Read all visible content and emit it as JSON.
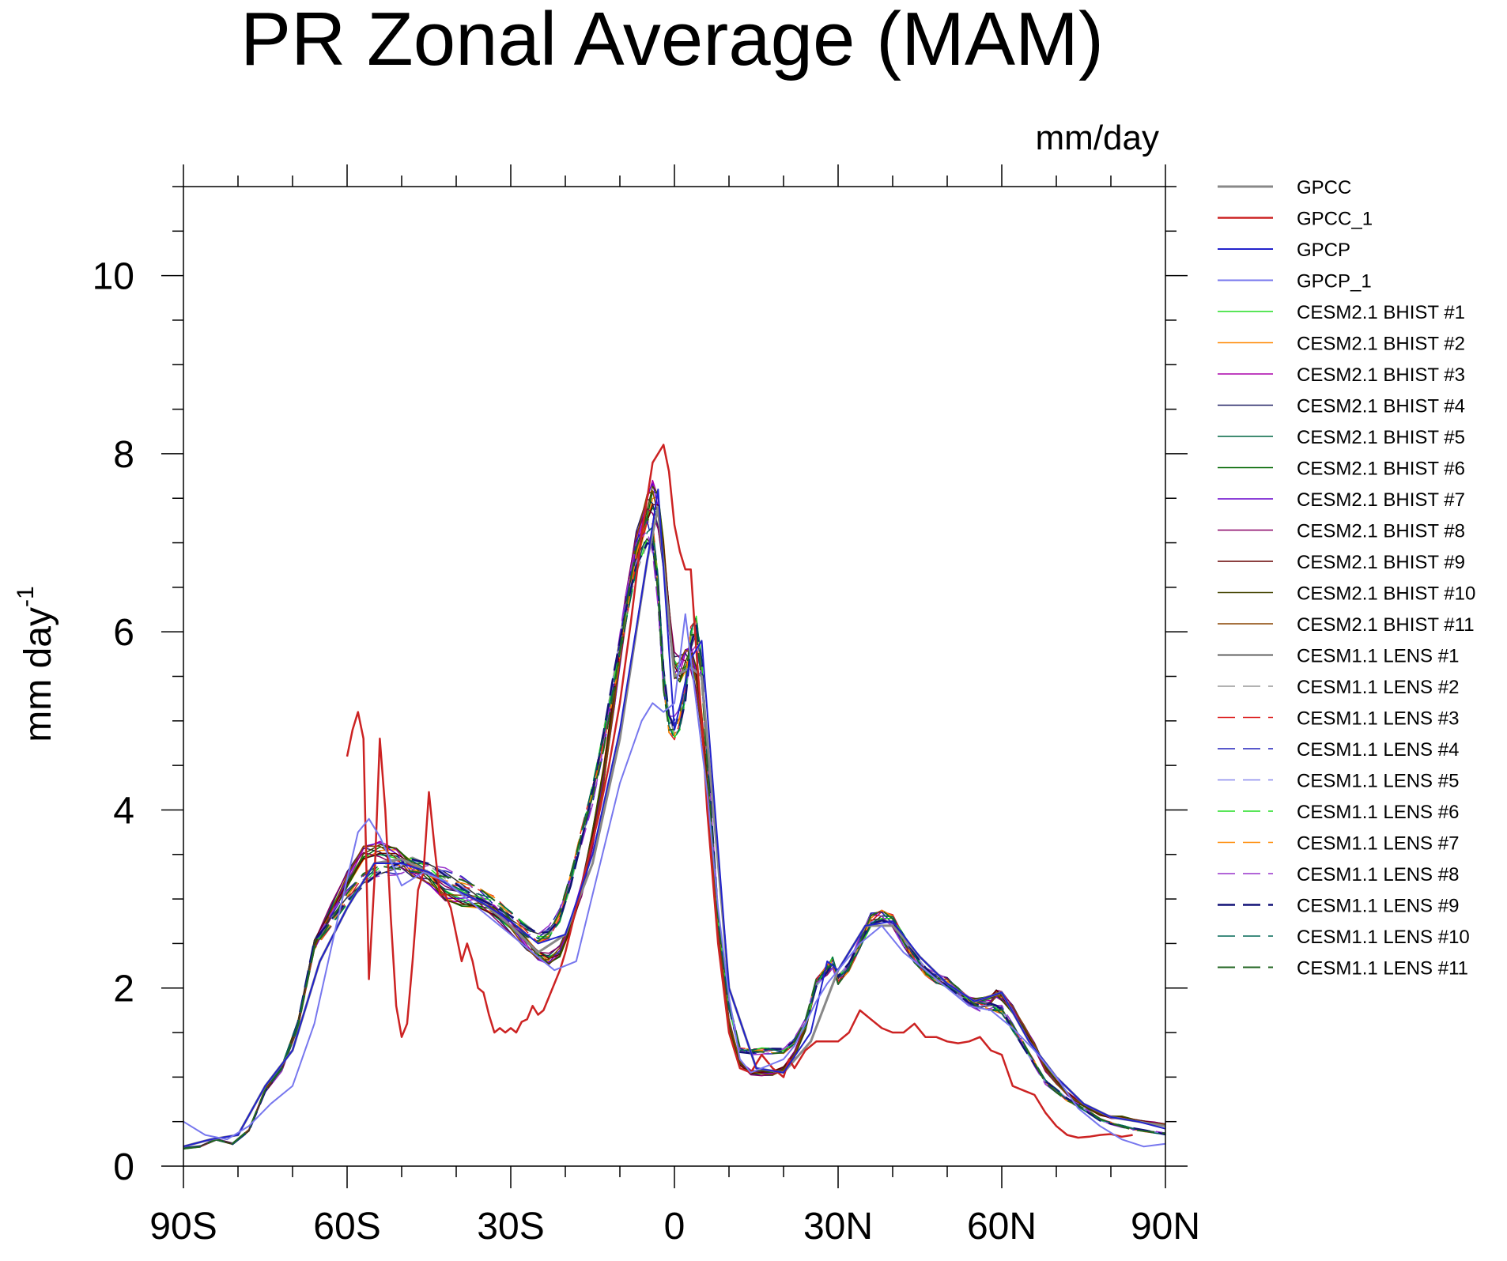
{
  "chart_data": {
    "type": "line",
    "title": "PR Zonal Average (MAM)",
    "units": "mm/day",
    "ylabel": "mm day",
    "ylabel_sup": "-1",
    "xlim": [
      -90,
      90
    ],
    "ylim": [
      0,
      11
    ],
    "x_ticks": [
      {
        "value": -90,
        "label": "90S"
      },
      {
        "value": -60,
        "label": "60S"
      },
      {
        "value": -30,
        "label": "30S"
      },
      {
        "value": 0,
        "label": "0"
      },
      {
        "value": 30,
        "label": "30N"
      },
      {
        "value": 60,
        "label": "60N"
      },
      {
        "value": 90,
        "label": "90N"
      }
    ],
    "y_ticks": [
      {
        "value": 0,
        "label": "0"
      },
      {
        "value": 2,
        "label": "2"
      },
      {
        "value": 4,
        "label": "4"
      },
      {
        "value": 6,
        "label": "6"
      },
      {
        "value": 8,
        "label": "8"
      },
      {
        "value": 10,
        "label": "10"
      }
    ],
    "legend_position": "right",
    "series": [
      {
        "name": "GPCC",
        "color": "#888888",
        "dash": false,
        "width": 3,
        "x": [
          -90,
          -85,
          -80,
          -75,
          -70,
          -65,
          -60,
          -55,
          -50,
          -45,
          -40,
          -35,
          -30,
          -25,
          -20,
          -15,
          -10,
          -5,
          -3,
          0,
          3,
          5,
          10,
          15,
          20,
          25,
          30,
          35,
          40,
          45,
          50,
          55,
          60,
          65,
          70,
          75,
          80,
          85,
          90
        ],
        "y": [
          0.22,
          0.3,
          0.35,
          0.9,
          1.3,
          2.3,
          2.9,
          3.4,
          3.45,
          3.3,
          3.1,
          2.95,
          2.7,
          2.4,
          2.6,
          3.4,
          4.8,
          6.8,
          7.4,
          5.5,
          5.6,
          5.5,
          2.0,
          1.1,
          1.05,
          1.4,
          2.2,
          2.7,
          2.7,
          2.35,
          2.05,
          1.85,
          1.95,
          1.4,
          1.0,
          0.7,
          0.55,
          0.5,
          0.45
        ]
      },
      {
        "name": "GPCC_1",
        "color": "#cc2222",
        "dash": false,
        "width": 2.5,
        "x": [
          -60,
          -59,
          -58,
          -57,
          -56,
          -55,
          -54,
          -53,
          -52,
          -51,
          -50,
          -49,
          -48,
          -47,
          -46,
          -45,
          -44,
          -43,
          -42,
          -41,
          -40,
          -39,
          -38,
          -37,
          -36,
          -35,
          -34,
          -33,
          -32,
          -31,
          -30,
          -29,
          -28,
          -27,
          -26,
          -25,
          -24,
          -23,
          -22,
          -21,
          -20,
          -18,
          -16,
          -14,
          -12,
          -10,
          -8,
          -6,
          -4,
          -2,
          -1,
          0,
          1,
          2,
          3,
          4,
          5,
          6,
          8,
          10,
          12,
          14,
          16,
          18,
          20,
          21,
          22,
          24,
          26,
          28,
          30,
          32,
          34,
          36,
          38,
          40,
          42,
          44,
          46,
          48,
          50,
          52,
          54,
          56,
          58,
          60,
          62,
          64,
          66,
          68,
          70,
          72,
          74,
          76,
          78,
          80,
          82,
          84
        ],
        "y": [
          4.6,
          4.9,
          5.1,
          4.8,
          2.1,
          3.2,
          4.8,
          4.0,
          2.8,
          1.8,
          1.45,
          1.6,
          2.3,
          3.1,
          3.3,
          4.2,
          3.6,
          3.05,
          3.05,
          2.9,
          2.6,
          2.3,
          2.5,
          2.3,
          2.0,
          1.95,
          1.7,
          1.5,
          1.55,
          1.5,
          1.55,
          1.5,
          1.62,
          1.65,
          1.8,
          1.7,
          1.75,
          1.9,
          2.05,
          2.2,
          2.4,
          2.9,
          3.4,
          3.9,
          4.5,
          5.2,
          6.1,
          7.1,
          7.9,
          8.1,
          7.8,
          7.2,
          6.9,
          6.7,
          6.7,
          5.8,
          5.0,
          4.0,
          2.5,
          1.5,
          1.1,
          1.05,
          1.25,
          1.1,
          1.0,
          1.2,
          1.1,
          1.3,
          1.4,
          1.4,
          1.4,
          1.5,
          1.75,
          1.65,
          1.55,
          1.5,
          1.5,
          1.6,
          1.45,
          1.45,
          1.4,
          1.38,
          1.4,
          1.45,
          1.3,
          1.25,
          0.9,
          0.85,
          0.8,
          0.6,
          0.45,
          0.35,
          0.32,
          0.33,
          0.35,
          0.36,
          0.33,
          0.35
        ]
      },
      {
        "name": "GPCP",
        "color": "#2222cc",
        "dash": false,
        "width": 2,
        "x": [
          -90,
          -85,
          -80,
          -75,
          -70,
          -65,
          -60,
          -55,
          -50,
          -45,
          -40,
          -35,
          -30,
          -25,
          -20,
          -15,
          -10,
          -5,
          -3,
          0,
          3,
          5,
          10,
          15,
          20,
          25,
          28,
          30,
          35,
          40,
          45,
          50,
          55,
          60,
          65,
          70,
          75,
          80,
          85,
          90
        ],
        "y": [
          0.22,
          0.3,
          0.35,
          0.9,
          1.3,
          2.3,
          2.9,
          3.4,
          3.4,
          3.3,
          3.1,
          2.95,
          2.75,
          2.5,
          2.6,
          3.5,
          4.9,
          6.8,
          7.6,
          4.9,
          5.7,
          5.9,
          2.0,
          1.1,
          1.05,
          1.5,
          2.3,
          2.2,
          2.7,
          2.75,
          2.35,
          2.05,
          1.85,
          1.95,
          1.4,
          1.0,
          0.7,
          0.55,
          0.5,
          0.42
        ]
      },
      {
        "name": "GPCP_1",
        "color": "#7777ee",
        "dash": false,
        "width": 2,
        "x": [
          -90,
          -86,
          -82,
          -78,
          -74,
          -70,
          -66,
          -62,
          -58,
          -56,
          -54,
          -50,
          -46,
          -42,
          -38,
          -34,
          -30,
          -26,
          -22,
          -18,
          -14,
          -10,
          -6,
          -4,
          -2,
          0,
          2,
          4,
          6,
          8,
          10,
          12,
          14,
          16,
          18,
          20,
          22,
          24,
          26,
          28,
          30,
          34,
          38,
          42,
          46,
          50,
          54,
          58,
          62,
          66,
          70,
          74,
          78,
          82,
          86,
          90
        ],
        "y": [
          0.5,
          0.35,
          0.3,
          0.45,
          0.7,
          0.9,
          1.6,
          2.7,
          3.75,
          3.9,
          3.7,
          3.15,
          3.3,
          3.2,
          3.0,
          2.8,
          2.6,
          2.4,
          2.2,
          2.3,
          3.3,
          4.3,
          5.0,
          5.2,
          5.1,
          5.2,
          6.2,
          5.2,
          4.2,
          2.9,
          1.9,
          1.2,
          1.05,
          1.1,
          1.15,
          1.2,
          1.35,
          1.6,
          1.85,
          2.05,
          2.2,
          2.5,
          2.7,
          2.4,
          2.2,
          2.0,
          1.8,
          1.75,
          1.55,
          1.3,
          1.0,
          0.65,
          0.45,
          0.3,
          0.22,
          0.25
        ]
      },
      {
        "name": "CESM2.1 BHIST #1",
        "color": "#22dd22",
        "dash": false,
        "width": 1.5,
        "x": [],
        "y": []
      },
      {
        "name": "CESM2.1 BHIST #2",
        "color": "#ff8800",
        "dash": false,
        "width": 1.5,
        "x": [],
        "y": []
      },
      {
        "name": "CESM2.1 BHIST #3",
        "color": "#aa00aa",
        "dash": false,
        "width": 1.5,
        "x": [],
        "y": []
      },
      {
        "name": "CESM2.1 BHIST #4",
        "color": "#222266",
        "dash": false,
        "width": 1.5,
        "x": [],
        "y": []
      },
      {
        "name": "CESM2.1 BHIST #5",
        "color": "#006644",
        "dash": false,
        "width": 1.5,
        "x": [],
        "y": []
      },
      {
        "name": "CESM2.1 BHIST #6",
        "color": "#006600",
        "dash": false,
        "width": 1.5,
        "x": [],
        "y": []
      },
      {
        "name": "CESM2.1 BHIST #7",
        "color": "#6600cc",
        "dash": false,
        "width": 1.5,
        "x": [],
        "y": []
      },
      {
        "name": "CESM2.1 BHIST #8",
        "color": "#880066",
        "dash": false,
        "width": 1.5,
        "x": [],
        "y": []
      },
      {
        "name": "CESM2.1 BHIST #9",
        "color": "#660000",
        "dash": false,
        "width": 1.5,
        "x": [],
        "y": []
      },
      {
        "name": "CESM2.1 BHIST #10",
        "color": "#444400",
        "dash": false,
        "width": 1.5,
        "x": [],
        "y": []
      },
      {
        "name": "CESM2.1 BHIST #11",
        "color": "#884400",
        "dash": false,
        "width": 1.5,
        "x": [],
        "y": []
      },
      {
        "name": "CESM1.1 LENS #1",
        "color": "#333333",
        "dash": false,
        "width": 1.5,
        "x": [],
        "y": []
      },
      {
        "name": "CESM1.1 LENS #2",
        "color": "#999999",
        "dash": true,
        "width": 1.5,
        "x": [],
        "y": []
      },
      {
        "name": "CESM1.1 LENS #3",
        "color": "#dd2222",
        "dash": true,
        "width": 1.5,
        "x": [],
        "y": []
      },
      {
        "name": "CESM1.1 LENS #4",
        "color": "#2222bb",
        "dash": true,
        "width": 1.5,
        "x": [],
        "y": []
      },
      {
        "name": "CESM1.1 LENS #5",
        "color": "#8888ee",
        "dash": true,
        "width": 1.5,
        "x": [],
        "y": []
      },
      {
        "name": "CESM1.1 LENS #6",
        "color": "#22dd22",
        "dash": true,
        "width": 1.5,
        "x": [],
        "y": []
      },
      {
        "name": "CESM1.1 LENS #7",
        "color": "#ff8800",
        "dash": true,
        "width": 1.5,
        "x": [],
        "y": []
      },
      {
        "name": "CESM1.1 LENS #8",
        "color": "#9933cc",
        "dash": true,
        "width": 1.5,
        "x": [],
        "y": []
      },
      {
        "name": "CESM1.1 LENS #9",
        "color": "#111177",
        "dash": true,
        "width": 2.5,
        "x": [],
        "y": []
      },
      {
        "name": "CESM1.1 LENS #10",
        "color": "#006655",
        "dash": true,
        "width": 1.5,
        "x": [],
        "y": []
      },
      {
        "name": "CESM1.1 LENS #11",
        "color": "#226622",
        "dash": true,
        "width": 2,
        "x": [],
        "y": []
      }
    ],
    "ensemble_template_bhist": {
      "x": [
        -90,
        -87,
        -84,
        -81,
        -78,
        -75,
        -72,
        -69,
        -66,
        -63,
        -60,
        -57,
        -54,
        -51,
        -48,
        -45,
        -42,
        -39,
        -36,
        -33,
        -30,
        -27,
        -25,
        -23,
        -21,
        -19,
        -17,
        -15,
        -13,
        -11,
        -9,
        -7,
        -5,
        -4,
        -3,
        -2,
        -1,
        0,
        1,
        2,
        3,
        4,
        5,
        6,
        8,
        10,
        12,
        14,
        16,
        18,
        20,
        22,
        24,
        26,
        28,
        29,
        30,
        32,
        34,
        36,
        38,
        40,
        42,
        44,
        46,
        48,
        50,
        52,
        54,
        56,
        58,
        59,
        60,
        62,
        64,
        66,
        68,
        70,
        72,
        74,
        76,
        78,
        80,
        82,
        84,
        86,
        88,
        90
      ],
      "y": [
        0.2,
        0.22,
        0.3,
        0.25,
        0.4,
        0.85,
        1.1,
        1.6,
        2.5,
        2.85,
        3.2,
        3.5,
        3.55,
        3.5,
        3.35,
        3.25,
        3.05,
        2.98,
        2.95,
        2.85,
        2.7,
        2.5,
        2.38,
        2.32,
        2.4,
        2.7,
        3.1,
        3.7,
        4.4,
        5.3,
        6.2,
        6.9,
        7.35,
        7.5,
        7.4,
        6.9,
        6.2,
        5.6,
        5.55,
        5.65,
        5.7,
        5.5,
        5.0,
        4.3,
        2.6,
        1.6,
        1.15,
        1.05,
        1.05,
        1.05,
        1.1,
        1.25,
        1.55,
        2.05,
        2.2,
        2.3,
        2.1,
        2.25,
        2.5,
        2.75,
        2.8,
        2.75,
        2.55,
        2.35,
        2.2,
        2.1,
        2.05,
        1.95,
        1.85,
        1.85,
        1.88,
        1.95,
        1.9,
        1.75,
        1.55,
        1.35,
        1.1,
        0.95,
        0.82,
        0.72,
        0.65,
        0.58,
        0.55,
        0.55,
        0.52,
        0.5,
        0.48,
        0.46
      ]
    },
    "ensemble_template_lens": {
      "x": [
        -90,
        -87,
        -84,
        -81,
        -78,
        -75,
        -72,
        -69,
        -66,
        -63,
        -60,
        -57,
        -54,
        -51,
        -48,
        -45,
        -42,
        -39,
        -36,
        -33,
        -30,
        -27,
        -25,
        -23,
        -21,
        -19,
        -17,
        -15,
        -13,
        -11,
        -9,
        -7,
        -5,
        -4,
        -3,
        -2,
        -1,
        0,
        1,
        2,
        3,
        4,
        5,
        6,
        8,
        10,
        12,
        14,
        16,
        18,
        20,
        22,
        24,
        26,
        28,
        29,
        30,
        32,
        34,
        36,
        38,
        40,
        42,
        44,
        46,
        48,
        50,
        52,
        54,
        56,
        58,
        59,
        60,
        62,
        64,
        66,
        68,
        70,
        72,
        74,
        76,
        78,
        80,
        82,
        84,
        86,
        88,
        90
      ],
      "y": [
        0.2,
        0.22,
        0.3,
        0.25,
        0.4,
        0.85,
        1.1,
        1.6,
        2.5,
        2.75,
        3.0,
        3.2,
        3.33,
        3.38,
        3.4,
        3.35,
        3.25,
        3.15,
        3.05,
        2.95,
        2.8,
        2.65,
        2.58,
        2.62,
        2.8,
        3.2,
        3.7,
        4.2,
        4.8,
        5.5,
        6.2,
        6.8,
        7.1,
        7.05,
        6.5,
        5.5,
        5.0,
        4.9,
        5.0,
        5.3,
        5.9,
        6.05,
        5.6,
        4.6,
        2.8,
        1.8,
        1.3,
        1.28,
        1.3,
        1.3,
        1.3,
        1.4,
        1.6,
        2.05,
        2.2,
        2.3,
        2.1,
        2.25,
        2.5,
        2.75,
        2.8,
        2.75,
        2.55,
        2.35,
        2.2,
        2.1,
        2.05,
        1.95,
        1.85,
        1.8,
        1.8,
        1.78,
        1.75,
        1.55,
        1.35,
        1.15,
        0.95,
        0.85,
        0.75,
        0.68,
        0.6,
        0.52,
        0.48,
        0.45,
        0.42,
        0.4,
        0.38,
        0.36
      ]
    }
  }
}
